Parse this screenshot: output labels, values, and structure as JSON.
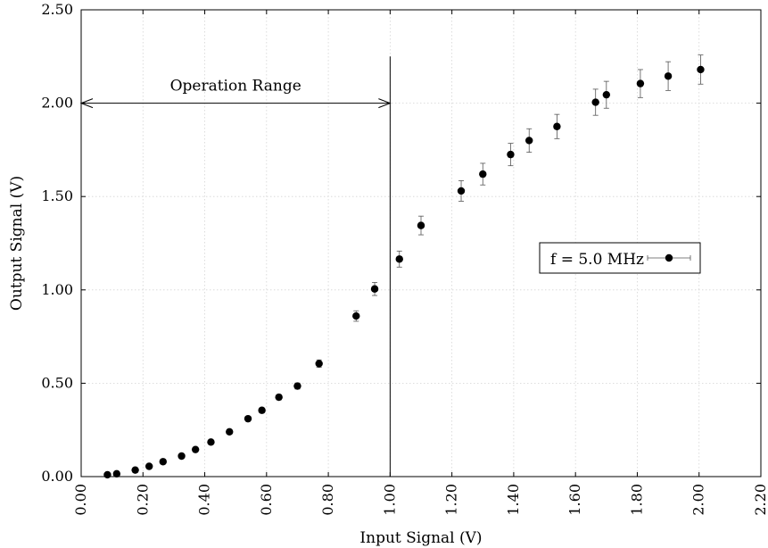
{
  "chart_data": {
    "type": "scatter",
    "title": "",
    "xlabel": "Input Signal (V)",
    "ylabel": "Output Signal (V)",
    "xlim": [
      0.0,
      2.2
    ],
    "ylim": [
      0.0,
      2.5
    ],
    "xticks": [
      "0.00",
      "0.20",
      "0.40",
      "0.60",
      "0.80",
      "1.00",
      "1.20",
      "1.40",
      "1.60",
      "1.80",
      "2.00",
      "2.20"
    ],
    "yticks": [
      "0.00",
      "0.50",
      "1.00",
      "1.50",
      "2.00",
      "2.50"
    ],
    "grid": true,
    "legend_position": "right",
    "series": [
      {
        "name": "f = 5.0 MHz",
        "color": "#000000",
        "x": [
          0.085,
          0.115,
          0.175,
          0.22,
          0.265,
          0.325,
          0.37,
          0.42,
          0.48,
          0.54,
          0.585,
          0.64,
          0.7,
          0.77,
          0.89,
          0.95,
          1.03,
          1.1,
          1.23,
          1.3,
          1.39,
          1.45,
          1.54,
          1.665,
          1.7,
          1.81,
          1.9,
          2.005
        ],
        "y": [
          0.01,
          0.015,
          0.035,
          0.055,
          0.08,
          0.11,
          0.145,
          0.185,
          0.24,
          0.31,
          0.355,
          0.425,
          0.485,
          0.605,
          0.86,
          1.005,
          1.165,
          1.345,
          1.53,
          1.62,
          1.725,
          1.8,
          1.875,
          2.005,
          2.045,
          2.105,
          2.145,
          2.18
        ],
        "y_err": [
          0.005,
          0.005,
          0.005,
          0.005,
          0.005,
          0.007,
          0.008,
          0.009,
          0.01,
          0.011,
          0.012,
          0.014,
          0.016,
          0.02,
          0.028,
          0.035,
          0.043,
          0.05,
          0.055,
          0.058,
          0.06,
          0.063,
          0.065,
          0.07,
          0.072,
          0.075,
          0.077,
          0.078
        ]
      }
    ],
    "annotations": [
      {
        "text": "Operation Range",
        "arrow_from_x": 0.0,
        "arrow_to_x": 1.0,
        "y": 2.0
      }
    ],
    "vertical_line": {
      "x": 1.0,
      "y_top": 2.25
    }
  }
}
